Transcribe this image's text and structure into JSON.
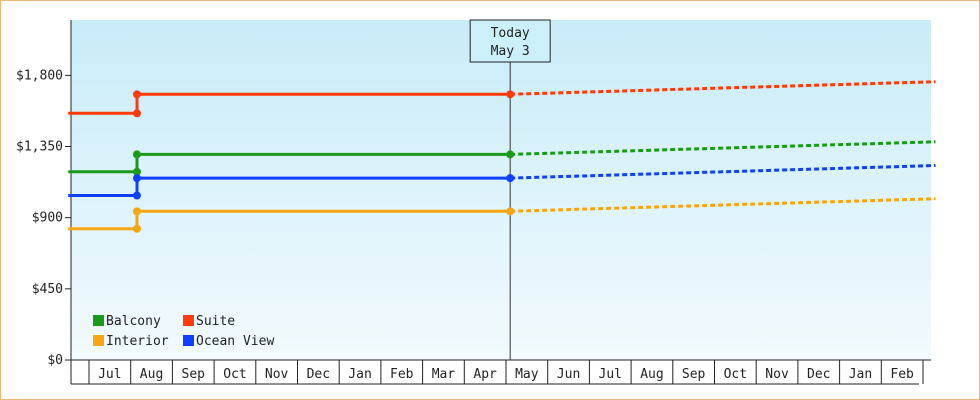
{
  "chart_data": {
    "type": "line",
    "title": "",
    "xlabel": "",
    "ylabel": "",
    "ylim": [
      0,
      2150
    ],
    "yticks": [
      {
        "value": 0,
        "label": "$0"
      },
      {
        "value": 450,
        "label": "$450"
      },
      {
        "value": 900,
        "label": "$900"
      },
      {
        "value": 1350,
        "label": "$1,350"
      },
      {
        "value": 1800,
        "label": "$1,800"
      }
    ],
    "month_labels": [
      "Jul",
      "Aug",
      "Sep",
      "Oct",
      "Nov",
      "Dec",
      "Jan",
      "Feb",
      "Mar",
      "Apr",
      "May",
      "Jun",
      "Jul",
      "Aug",
      "Sep",
      "Oct",
      "Nov",
      "Dec",
      "Jan",
      "Feb"
    ],
    "today_marker": {
      "line1": "Today",
      "line2": "May 3",
      "month_index": 10.1
    },
    "legend": {
      "placement": "bottom-left"
    },
    "grid": false,
    "series": [
      {
        "name": "Balcony",
        "color": "#1a9a1a",
        "historical": [
          {
            "m": -0.5,
            "v": 1190
          },
          {
            "m": 1.15,
            "v": 1190
          },
          {
            "m": 1.15,
            "v": 1300
          },
          {
            "m": 10.1,
            "v": 1300
          }
        ],
        "forecast": [
          {
            "m": 10.1,
            "v": 1300
          },
          {
            "m": 20.3,
            "v": 1380
          }
        ]
      },
      {
        "name": "Suite",
        "color": "#ff3a0a",
        "historical": [
          {
            "m": -0.5,
            "v": 1560
          },
          {
            "m": 1.15,
            "v": 1560
          },
          {
            "m": 1.15,
            "v": 1680
          },
          {
            "m": 10.1,
            "v": 1680
          }
        ],
        "forecast": [
          {
            "m": 10.1,
            "v": 1680
          },
          {
            "m": 20.3,
            "v": 1760
          }
        ]
      },
      {
        "name": "Interior",
        "color": "#f5a612",
        "historical": [
          {
            "m": -0.5,
            "v": 830
          },
          {
            "m": 1.15,
            "v": 830
          },
          {
            "m": 1.15,
            "v": 940
          },
          {
            "m": 10.1,
            "v": 940
          }
        ],
        "forecast": [
          {
            "m": 10.1,
            "v": 940
          },
          {
            "m": 20.3,
            "v": 1020
          }
        ]
      },
      {
        "name": "Ocean View",
        "color": "#1040ff",
        "historical": [
          {
            "m": -0.5,
            "v": 1040
          },
          {
            "m": 1.15,
            "v": 1040
          },
          {
            "m": 1.15,
            "v": 1150
          },
          {
            "m": 10.1,
            "v": 1150
          }
        ],
        "forecast": [
          {
            "m": 10.1,
            "v": 1150
          },
          {
            "m": 20.3,
            "v": 1230
          }
        ]
      }
    ]
  }
}
